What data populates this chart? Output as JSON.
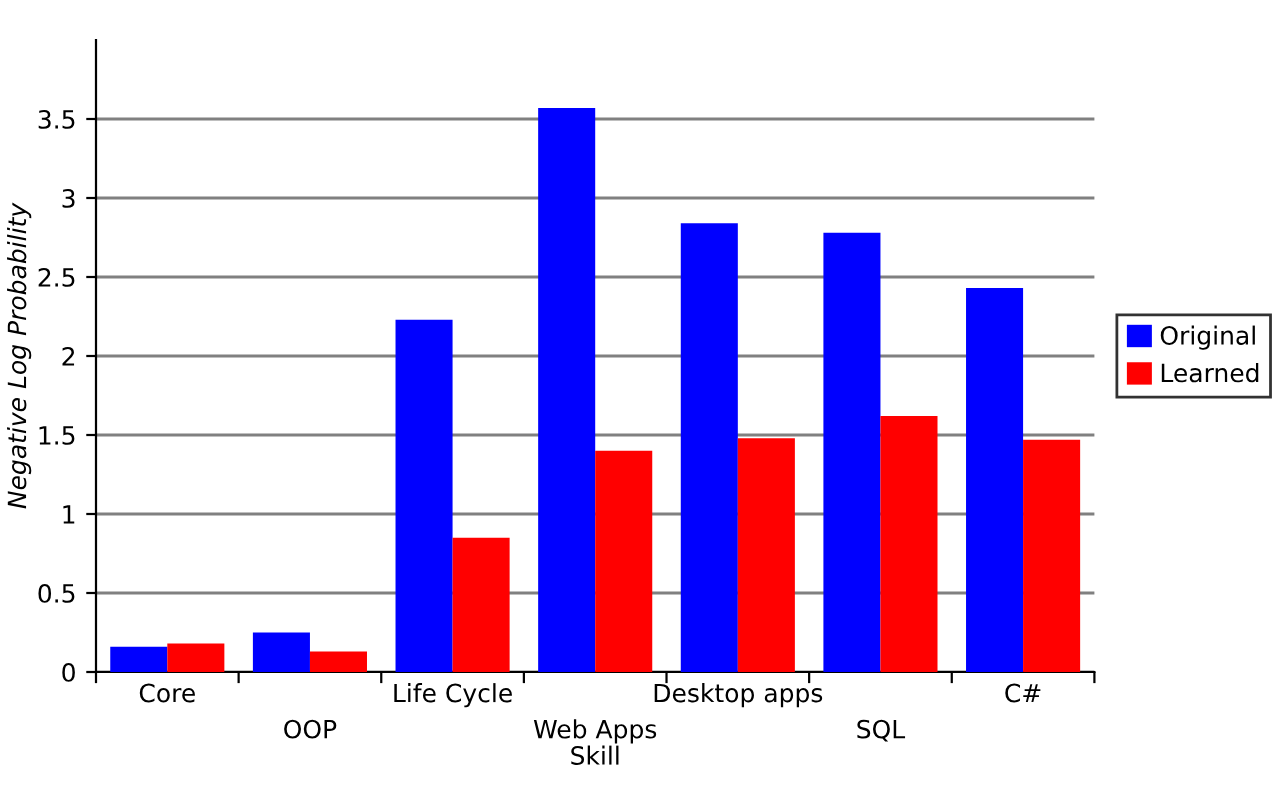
{
  "chart_data": {
    "type": "bar",
    "xlabel": "Skill",
    "ylabel": "Negative Log Probability",
    "categories": [
      "Core",
      "OOP",
      "Life Cycle",
      "Web Apps",
      "Desktop apps",
      "SQL",
      "C#"
    ],
    "series": [
      {
        "name": "Original",
        "color": "#0000ff",
        "values": [
          0.16,
          0.25,
          2.23,
          3.57,
          2.84,
          2.78,
          2.43
        ]
      },
      {
        "name": "Learned",
        "color": "#ff0000",
        "values": [
          0.18,
          0.13,
          0.85,
          1.4,
          1.48,
          1.62,
          1.47
        ]
      }
    ],
    "ylim": [
      0,
      4
    ],
    "yticks": [
      0,
      0.5,
      1,
      1.5,
      2,
      2.5,
      3,
      3.5
    ],
    "grid": "y",
    "legend": "right"
  }
}
